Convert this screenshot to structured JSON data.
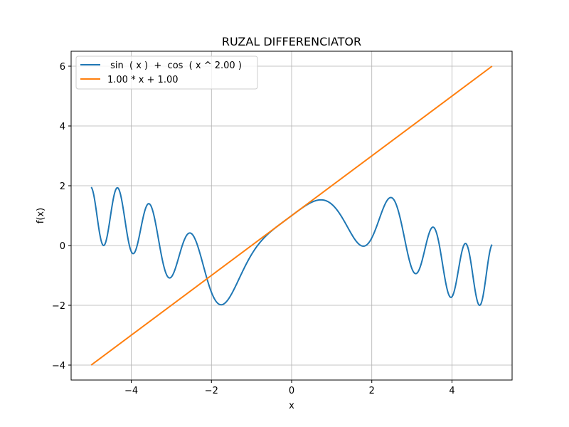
{
  "chart_data": {
    "type": "line",
    "title": "RUZAL DIFFERENCIATOR",
    "xlabel": "x",
    "ylabel": "f(x)",
    "xlim": [
      -5.5,
      5.5
    ],
    "ylim": [
      -4.5,
      6.5
    ],
    "x_ticks": [
      -4,
      -2,
      0,
      2,
      4
    ],
    "y_ticks": [
      -4,
      -2,
      0,
      2,
      4,
      6
    ],
    "x_tick_labels": [
      "−4",
      "−2",
      "0",
      "2",
      "4"
    ],
    "y_tick_labels": [
      "−4",
      "−2",
      "0",
      "2",
      "4",
      "6"
    ],
    "grid": true,
    "legend_position": "top-left",
    "series": [
      {
        "name": " sin  ( x )  +  cos  ( x ^ 2.00 )",
        "color": "#1f77b4",
        "x_range": [
          -5,
          5
        ],
        "note_values_at": {
          "x": [
            -5,
            -4.72,
            -4.33,
            -3.95,
            -3.56,
            -3.03,
            -2.54,
            -1.75,
            0,
            0.73,
            1.76,
            2.47,
            3.14,
            3.51,
            3.99,
            4.32,
            4.7,
            5
          ],
          "y": [
            1.95,
            0.0,
            1.93,
            -0.25,
            1.4,
            -1.05,
            0.42,
            -1.99,
            1.0,
            1.53,
            -0.01,
            1.6,
            -0.9,
            0.62,
            -1.72,
            0.06,
            -1.98,
            0.03
          ]
        }
      },
      {
        "name": "1.00 * x + 1.00",
        "color": "#ff7f0e",
        "x": [
          -5,
          5
        ],
        "y": [
          -4,
          6
        ]
      }
    ]
  }
}
